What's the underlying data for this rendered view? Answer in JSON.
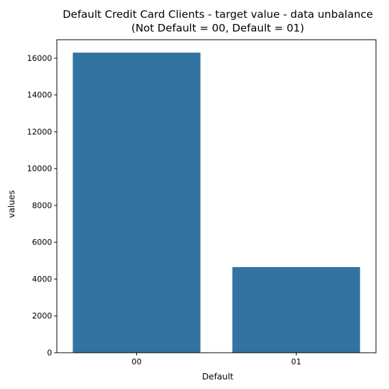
{
  "chart_data": {
    "type": "bar",
    "title": "Default Credit Card Clients - target value - data unbalance",
    "subtitle": "(Not Default = 00, Default = 01)",
    "xlabel": "Default",
    "ylabel": "values",
    "categories": [
      "00",
      "01"
    ],
    "values": [
      16300,
      4650
    ],
    "ylim": [
      0,
      17000
    ],
    "yticks": [
      0,
      2000,
      4000,
      6000,
      8000,
      10000,
      12000,
      14000,
      16000
    ],
    "bar_color": "#3274a1",
    "grid": false,
    "legend": "none"
  }
}
